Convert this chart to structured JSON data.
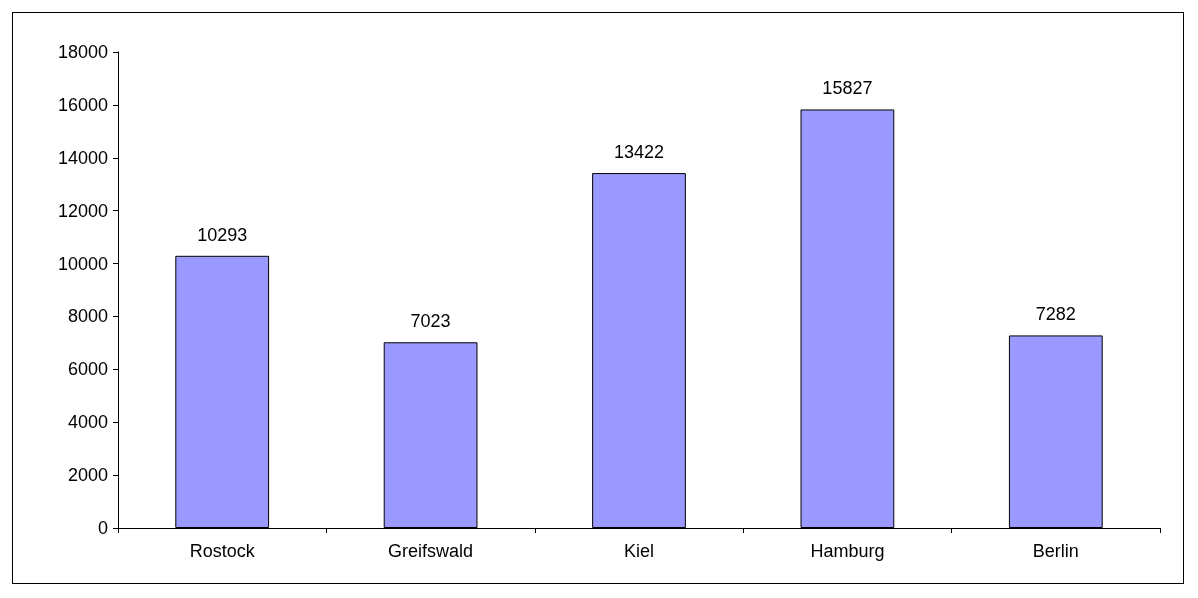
{
  "chart_data": {
    "type": "bar",
    "categories": [
      "Rostock",
      "Greifswald",
      "Kiel",
      "Hamburg",
      "Berlin"
    ],
    "values": [
      10293,
      7023,
      13422,
      15827,
      7282
    ],
    "color": "#9999ff",
    "ylim": [
      0,
      18000
    ],
    "yticks": [
      0,
      2000,
      4000,
      6000,
      8000,
      10000,
      12000,
      14000,
      16000,
      18000
    ],
    "grid": false,
    "data_labels": true
  }
}
